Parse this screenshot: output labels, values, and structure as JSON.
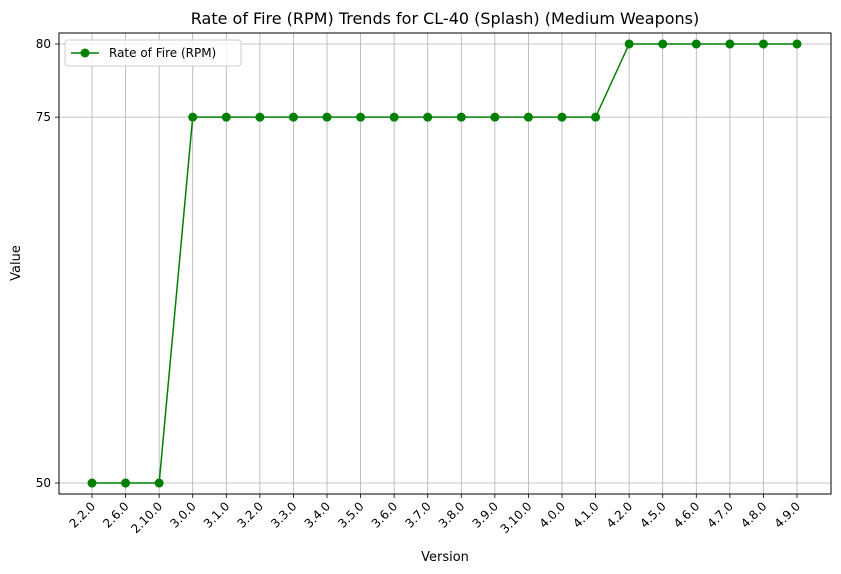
{
  "chart_data": {
    "type": "line",
    "title": "Rate of Fire (RPM) Trends for CL-40 (Splash) (Medium Weapons)",
    "xlabel": "Version",
    "ylabel": "Value",
    "categories": [
      "2.2.0",
      "2.6.0",
      "2.10.0",
      "3.0.0",
      "3.1.0",
      "3.2.0",
      "3.3.0",
      "3.4.0",
      "3.5.0",
      "3.6.0",
      "3.7.0",
      "3.8.0",
      "3.9.0",
      "3.10.0",
      "4.0.0",
      "4.1.0",
      "4.2.0",
      "4.5.0",
      "4.6.0",
      "4.7.0",
      "4.8.0",
      "4.9.0"
    ],
    "series": [
      {
        "name": "Rate of Fire (RPM)",
        "color": "#008000",
        "values": [
          50,
          50,
          50,
          75,
          75,
          75,
          75,
          75,
          75,
          75,
          75,
          75,
          75,
          75,
          75,
          75,
          80,
          80,
          80,
          80,
          80,
          80
        ]
      }
    ],
    "yticks": [
      50,
      75,
      80
    ],
    "ylim": [
      49.25,
      80.75
    ],
    "grid": true,
    "legend_position": "top-left"
  }
}
